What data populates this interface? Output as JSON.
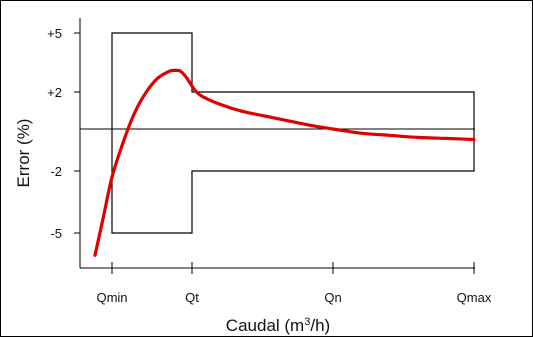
{
  "chart_data": {
    "type": "line",
    "title": "",
    "xlabel": "Caudal (m",
    "xlabel_sup": "3",
    "xlabel_tail": "/h)",
    "ylabel": "Error (%)",
    "x_ticks": [
      "Qmin",
      "Qt",
      "Qn",
      "Qmax"
    ],
    "y_ticks": [
      {
        "label": "+5",
        "value": 5
      },
      {
        "label": "+2",
        "value": 2
      },
      {
        "label": "-2",
        "value": -2
      },
      {
        "label": "-5",
        "value": -5
      }
    ],
    "ylim": [
      -6.3,
      6.5
    ],
    "series": [
      {
        "color": "#e00000",
        "points": [
          {
            "x": -0.4,
            "y": -6.0
          },
          {
            "x": -0.2,
            "y": -4.2
          },
          {
            "x": 0.0,
            "y": -2.3
          },
          {
            "x": 0.2,
            "y": -0.6
          },
          {
            "x": 0.4,
            "y": 0.9
          },
          {
            "x": 0.6,
            "y": 2.0
          },
          {
            "x": 0.8,
            "y": 2.7
          },
          {
            "x": 1.0,
            "y": 3.05
          },
          {
            "x": 1.1,
            "y": 3.1
          },
          {
            "x": 1.2,
            "y": 3.05
          },
          {
            "x": 1.3,
            "y": 2.75
          },
          {
            "x": 1.4,
            "y": 2.3
          },
          {
            "x": 1.5,
            "y": 2.0
          },
          {
            "x": 1.6,
            "y": 1.8
          },
          {
            "x": 1.8,
            "y": 1.55
          },
          {
            "x": 2.0,
            "y": 1.35
          },
          {
            "x": 2.3,
            "y": 1.1
          },
          {
            "x": 2.6,
            "y": 0.9
          },
          {
            "x": 3.0,
            "y": 0.7
          },
          {
            "x": 3.5,
            "y": 0.45
          },
          {
            "x": 4.0,
            "y": 0.2
          },
          {
            "x": 4.5,
            "y": 0.0
          },
          {
            "x": 5.0,
            "y": -0.2
          },
          {
            "x": 5.5,
            "y": -0.3
          },
          {
            "x": 6.0,
            "y": -0.4
          },
          {
            "x": 6.5,
            "y": -0.45
          },
          {
            "x": 7.0,
            "y": -0.5
          }
        ]
      }
    ],
    "reference_line": {
      "y": 0
    },
    "tolerance_envelope": {
      "color": "#000000",
      "segments": [
        {
          "x_from": "Qmin",
          "x_to": "Qt",
          "upper": 5,
          "lower": -5
        },
        {
          "x_from": "Qt",
          "x_to": "Qmax",
          "upper": 2,
          "lower": -2
        }
      ]
    },
    "grid": false,
    "legend": "none"
  }
}
